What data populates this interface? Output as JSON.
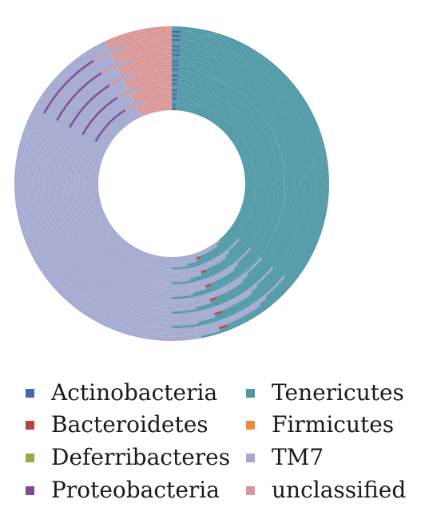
{
  "chart_data": {
    "type": "donut",
    "title": "",
    "legend_position": "bottom",
    "categories": [
      "Actinobacteria",
      "Tenericutes",
      "Bacteroidetes",
      "Firmicutes",
      "Deferribacteres",
      "TM7",
      "Proteobacteria",
      "unclassified"
    ],
    "colors": {
      "Actinobacteria": "#4a67a6",
      "Tenericutes": "#4f98a6",
      "Bacteroidetes": "#b84543",
      "Firmicutes": "#e88b3c",
      "Deferribacteres": "#8eac4a",
      "TM7": "#a3a9d0",
      "Proteobacteria": "#7b4d98",
      "unclassified": "#d99696"
    },
    "ring_count": 40,
    "ring_pattern": [
      [
        1,
        38,
        0,
        0,
        0,
        55,
        0,
        6
      ],
      [
        0,
        40,
        0,
        0,
        0,
        53,
        0,
        7
      ],
      [
        1,
        43,
        1,
        0,
        0,
        48,
        0,
        7
      ],
      [
        0,
        45,
        0,
        0,
        0,
        48,
        0,
        7
      ],
      [
        0,
        47,
        0,
        0,
        0,
        46,
        0,
        7
      ],
      [
        1,
        49,
        0,
        0,
        0,
        45,
        0,
        5
      ],
      [
        0,
        36,
        0,
        0,
        0,
        47,
        8,
        9
      ]
    ]
  }
}
